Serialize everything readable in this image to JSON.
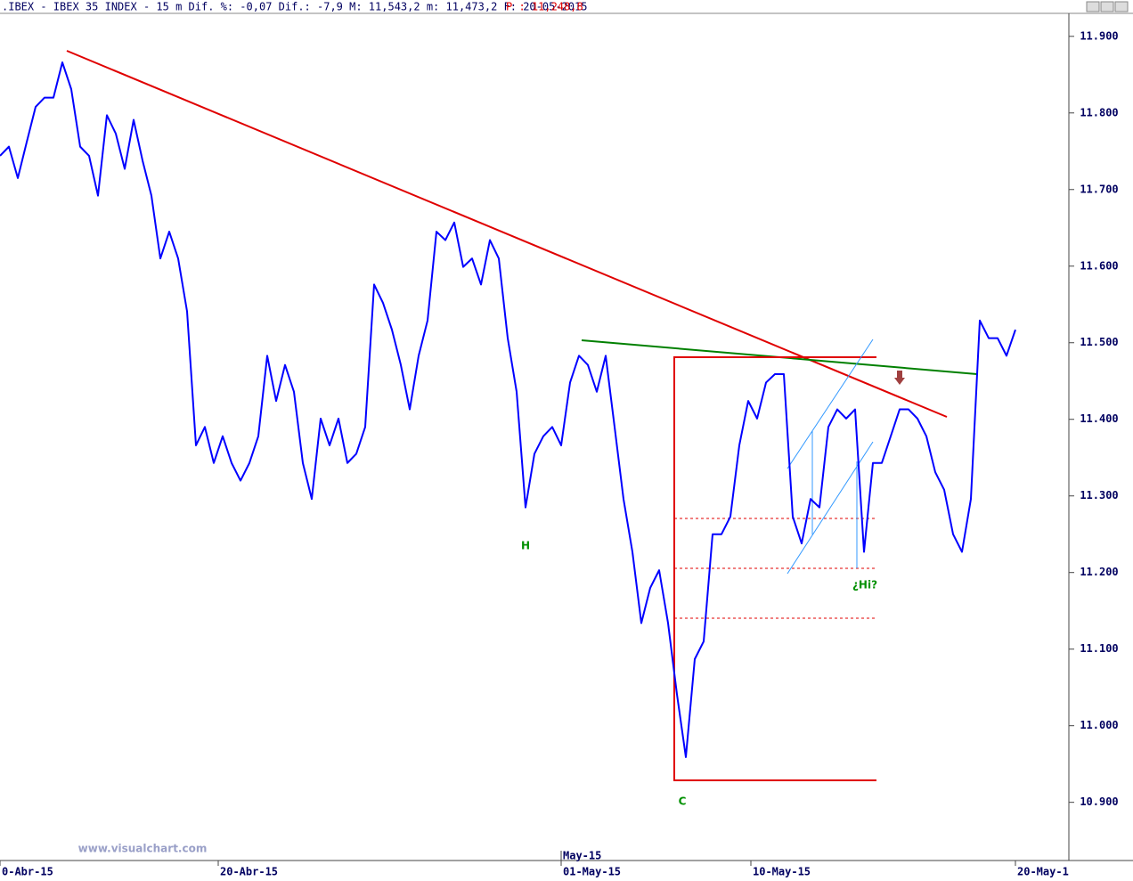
{
  "chart_data": {
    "type": "line",
    "title": ".IBEX - IBEX 35 INDEX -  15 m Dif. %: -0,07 Dif.: -7,9 M: 11,543,2 m: 11,473,2 F: 20-05-2015",
    "subtitle": "P : 11,248,8",
    "watermark": "www.visualchart.com",
    "annotations": [
      "H",
      "C",
      "¿Hi?"
    ],
    "x": [
      0,
      1,
      2,
      3,
      4,
      5,
      6,
      7,
      8,
      9,
      10,
      11,
      12,
      13,
      14,
      15,
      16,
      17,
      18,
      19,
      20,
      21,
      22,
      23,
      24,
      25,
      26,
      27,
      28,
      29,
      30,
      31,
      32,
      33,
      34,
      35,
      36,
      37,
      38,
      39,
      40,
      41,
      42,
      43,
      44,
      45,
      46,
      47,
      48,
      49,
      50,
      51,
      52,
      53,
      54,
      55,
      56,
      57,
      58,
      59,
      60,
      61,
      62,
      63,
      64,
      65,
      66,
      67,
      68,
      69,
      70,
      71,
      72,
      73,
      74,
      75,
      76,
      77,
      78,
      79,
      80,
      81,
      82,
      83,
      84,
      85,
      86,
      87,
      88,
      89,
      90,
      91,
      92,
      93,
      94,
      95,
      96,
      97,
      98,
      99,
      100,
      101,
      102,
      103,
      104,
      105,
      106,
      107,
      108,
      109,
      110,
      111,
      112,
      113,
      114
    ],
    "series": [
      {
        "name": "IBEX 35",
        "color": "#0000ff",
        "values": [
          11744,
          11756,
          11715,
          11762,
          11808,
          11820,
          11820,
          11866,
          11831,
          11756,
          11744,
          11692,
          11797,
          11773,
          11727,
          11791,
          11738,
          11692,
          11610,
          11645,
          11610,
          11541,
          11366,
          11390,
          11343,
          11378,
          11343,
          11320,
          11343,
          11378,
          11483,
          11424,
          11471,
          11436,
          11343,
          11296,
          11401,
          11366,
          11401,
          11343,
          11355,
          11390,
          11576,
          11552,
          11517,
          11471,
          11413,
          11483,
          11529,
          11645,
          11634,
          11657,
          11599,
          11610,
          11576,
          11634,
          11610,
          11506,
          11436,
          11285,
          11355,
          11378,
          11390,
          11366,
          11448,
          11483,
          11471,
          11436,
          11483,
          11390,
          11296,
          11227,
          11134,
          11180,
          11203,
          11134,
          11041,
          10959,
          11087,
          11110,
          11250,
          11250,
          11273,
          11366,
          11424,
          11401,
          11448,
          11459,
          11459,
          11273,
          11238,
          11296,
          11285,
          11390,
          11413,
          11401,
          11413,
          11227,
          11343,
          11343,
          11378,
          11413,
          11413,
          11401,
          11378,
          11331,
          11308,
          11250,
          11227,
          11296,
          11529,
          11506,
          11506,
          11483,
          11517
        ]
      }
    ],
    "xlim": [
      0,
      120
    ],
    "xticks": [
      {
        "value": 0,
        "label": "0-Abr-15"
      },
      {
        "value": 24.5,
        "label": "20-Abr-15"
      },
      {
        "value": 63,
        "label": "01-May-15"
      },
      {
        "value": 84.3,
        "label": "10-May-15"
      },
      {
        "value": 114,
        "label": "20-May-1"
      }
    ],
    "period_ticks": [
      {
        "value": 63,
        "label": "May-15"
      }
    ],
    "ylim": [
      10831,
      11930
    ],
    "yticks": [
      {
        "value": 11900,
        "label": "11.900"
      },
      {
        "value": 11800,
        "label": "11.800"
      },
      {
        "value": 11700,
        "label": "11.700"
      },
      {
        "value": 11600,
        "label": "11.600"
      },
      {
        "value": 11500,
        "label": "11.500"
      },
      {
        "value": 11400,
        "label": "11.400"
      },
      {
        "value": 11300,
        "label": "11.300"
      },
      {
        "value": 11200,
        "label": "11.200"
      },
      {
        "value": 11100,
        "label": "11.100"
      },
      {
        "value": 11000,
        "label": "11.000"
      },
      {
        "value": 10900,
        "label": "10.900"
      }
    ]
  }
}
